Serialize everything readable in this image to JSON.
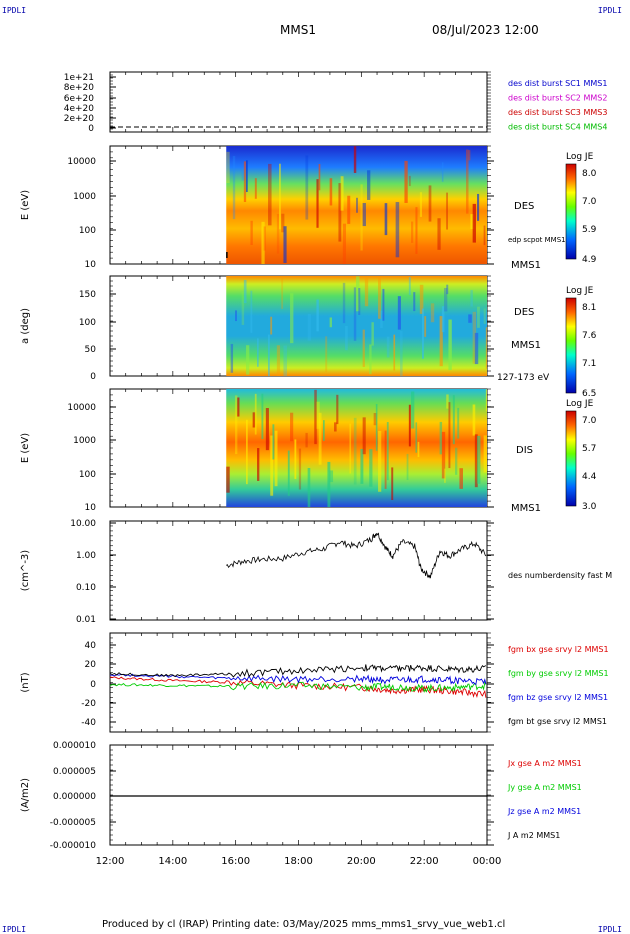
{
  "corners": {
    "tl": "IPDLI",
    "tr": "IPDLI",
    "bl": "IPDLI",
    "br": "IPDLI"
  },
  "header": {
    "title": "MMS1",
    "date": "08/Jul/2023 12:00"
  },
  "footer": {
    "text": "Produced by cl (IRAP)   Printing date: 03/May/2025   mms_mms1_srvy_vue_web1.cl"
  },
  "colors": {
    "mms1": "#0000cc",
    "mms2": "#cc00cc",
    "mms3": "#cc0000",
    "mms4": "#00bb00",
    "bx": "#dd0000",
    "by": "#00cc00",
    "bz": "#0000dd",
    "bt": "#000000"
  },
  "chart_data": [
    {
      "type": "line",
      "panel": "burst",
      "ylim": [
        0,
        1.1e+21
      ],
      "yticks": [
        "1e+21",
        "8e+20",
        "6e+20",
        "4e+20",
        "2e+20",
        "0"
      ],
      "legend": [
        "des dist burst SC1 MMS1",
        "des dist burst SC2 MMS2",
        "des dist burst SC3 MMS3",
        "des dist burst SC4 MMS4"
      ],
      "series": [
        {
          "name": "des dist burst SC1 MMS1",
          "values": [
            0,
            0
          ]
        }
      ]
    },
    {
      "type": "heatmap",
      "panel": "des-energy",
      "ylabel": "E (eV)",
      "yticks": [
        "10000",
        "1000",
        "100",
        "10"
      ],
      "scale": "log",
      "label": "DES",
      "overlay_label": "edp scpot MMS1",
      "bottom_label": "MMS1",
      "colorbar": {
        "title": "Log JE",
        "ticks": [
          "8.0",
          "7.0",
          "5.9",
          "4.9"
        ]
      },
      "data_start": "15:40"
    },
    {
      "type": "heatmap",
      "panel": "des-pitch",
      "ylabel": "a (deg)",
      "yticks": [
        "150",
        "100",
        "50",
        "0"
      ],
      "label": "DES",
      "sub_label": "MMS1",
      "bottom_label": "127-173 eV",
      "colorbar": {
        "title": "Log JE",
        "ticks": [
          "8.1",
          "7.6",
          "7.1",
          "6.5"
        ]
      },
      "data_start": "15:40"
    },
    {
      "type": "heatmap",
      "panel": "dis-energy",
      "ylabel": "E (eV)",
      "yticks": [
        "10000",
        "1000",
        "100",
        "10"
      ],
      "scale": "log",
      "label": "DIS",
      "bottom_label": "MMS1",
      "colorbar": {
        "title": "Log JE",
        "ticks": [
          "7.0",
          "5.7",
          "4.4",
          "3.0"
        ]
      },
      "data_start": "15:40"
    },
    {
      "type": "line",
      "panel": "density",
      "ylabel": "(cm^-3)",
      "yticks": [
        "10.00",
        "1.00",
        "0.10",
        "0.01"
      ],
      "scale": "log",
      "ylim": [
        0.01,
        10
      ],
      "legend": [
        "des numberdensity fast M"
      ],
      "series": [
        {
          "name": "des numberdensity fast M",
          "x": [
            15.7,
            16.2,
            16.8,
            17.5,
            18.2,
            18.8,
            19.3,
            19.8,
            20.3,
            20.5,
            20.8,
            21.0,
            21.3,
            21.7,
            21.9,
            22.2,
            22.5,
            22.8,
            23.2,
            23.6,
            24.0
          ],
          "values": [
            0.45,
            0.6,
            0.7,
            0.75,
            1.2,
            1.5,
            2.5,
            1.8,
            3.0,
            5.0,
            1.5,
            0.9,
            2.5,
            1.8,
            0.35,
            0.2,
            1.3,
            0.9,
            1.5,
            2.2,
            0.9
          ]
        }
      ]
    },
    {
      "type": "line",
      "panel": "fgm",
      "ylabel": "(nT)",
      "yticks": [
        "40",
        "20",
        "0",
        "-20",
        "-40"
      ],
      "ylim": [
        -50,
        50
      ],
      "legend": [
        "fgm bx gse srvy l2 MMS1",
        "fgm by gse srvy l2 MMS1",
        "fgm bz gse srvy l2 MMS1",
        "fgm bt gse srvy l2 MMS1"
      ],
      "series": [
        {
          "name": "fgm bx gse srvy l2 MMS1",
          "x": [
            12,
            14,
            16,
            18,
            20,
            21,
            22,
            23,
            24
          ],
          "values": [
            5,
            2,
            0,
            -3,
            -5,
            -8,
            -7,
            -9,
            -12
          ]
        },
        {
          "name": "fgm by gse srvy l2 MMS1",
          "x": [
            12,
            14,
            16,
            18,
            20,
            21,
            22,
            23,
            24
          ],
          "values": [
            -2,
            -3,
            -4,
            -3,
            -5,
            -4,
            -6,
            -5,
            -3
          ]
        },
        {
          "name": "fgm bz gse srvy l2 MMS1",
          "x": [
            12,
            14,
            16,
            18,
            20,
            21,
            22,
            23,
            24
          ],
          "values": [
            8,
            6,
            4,
            3,
            4,
            2,
            3,
            2,
            0
          ]
        },
        {
          "name": "fgm bt gse srvy l2 MMS1",
          "x": [
            12,
            14,
            16,
            18,
            20,
            21,
            22,
            23,
            24
          ],
          "values": [
            9,
            7,
            9,
            12,
            15,
            14,
            15,
            13,
            14
          ]
        }
      ]
    },
    {
      "type": "line",
      "panel": "current",
      "ylabel": "(A/m2)",
      "yticks": [
        "0.000010",
        "0.000005",
        "0.000000",
        "-0.000005",
        "-0.000010"
      ],
      "ylim": [
        -1e-05,
        1e-05
      ],
      "legend": [
        "Jx gse A m2 MMS1",
        "Jy gse A m2 MMS1",
        "Jz gse A m2 MMS1",
        "J A m2 MMS1"
      ],
      "series": [
        {
          "name": "J A m2 MMS1",
          "x": [
            12,
            24
          ],
          "values": [
            0,
            0
          ]
        }
      ]
    }
  ],
  "xaxis": {
    "ticks": [
      "12:00",
      "14:00",
      "16:00",
      "18:00",
      "20:00",
      "22:00",
      "00:00"
    ]
  }
}
